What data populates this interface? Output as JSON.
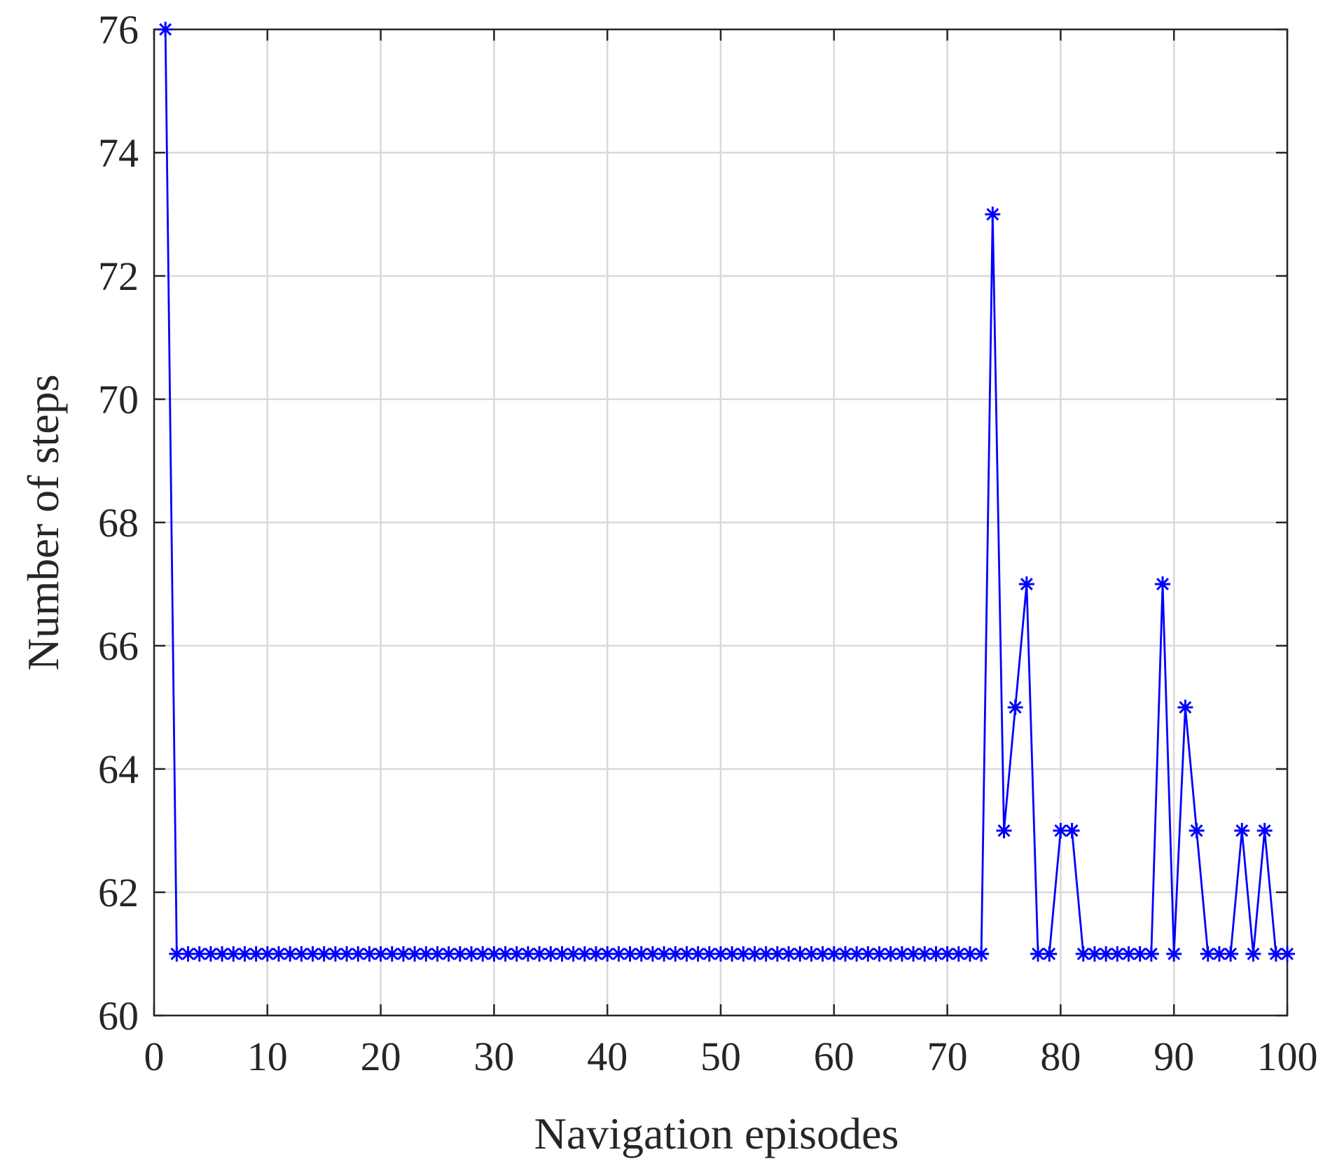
{
  "chart_data": {
    "type": "line",
    "title": "",
    "xlabel": "Navigation episodes",
    "ylabel": "Number of steps",
    "xlim": [
      0,
      100
    ],
    "ylim": [
      60,
      76
    ],
    "xticks": [
      "0",
      "10",
      "20",
      "30",
      "40",
      "50",
      "60",
      "70",
      "80",
      "90",
      "100"
    ],
    "yticks": [
      "60",
      "62",
      "64",
      "66",
      "68",
      "70",
      "72",
      "74",
      "76"
    ],
    "grid": true,
    "marker": "asterisk",
    "series": [
      {
        "color": "#0000ff",
        "x": [
          1,
          2,
          3,
          4,
          5,
          6,
          7,
          8,
          9,
          10,
          11,
          12,
          13,
          14,
          15,
          16,
          17,
          18,
          19,
          20,
          21,
          22,
          23,
          24,
          25,
          26,
          27,
          28,
          29,
          30,
          31,
          32,
          33,
          34,
          35,
          36,
          37,
          38,
          39,
          40,
          41,
          42,
          43,
          44,
          45,
          46,
          47,
          48,
          49,
          50,
          51,
          52,
          53,
          54,
          55,
          56,
          57,
          58,
          59,
          60,
          61,
          62,
          63,
          64,
          65,
          66,
          67,
          68,
          69,
          70,
          71,
          72,
          73,
          74,
          75,
          76,
          77,
          78,
          79,
          80,
          81,
          82,
          83,
          84,
          85,
          86,
          87,
          88,
          89,
          90,
          91,
          92,
          93,
          94,
          95,
          96,
          97,
          98,
          99,
          100
        ],
        "y": [
          76,
          61,
          61,
          61,
          61,
          61,
          61,
          61,
          61,
          61,
          61,
          61,
          61,
          61,
          61,
          61,
          61,
          61,
          61,
          61,
          61,
          61,
          61,
          61,
          61,
          61,
          61,
          61,
          61,
          61,
          61,
          61,
          61,
          61,
          61,
          61,
          61,
          61,
          61,
          61,
          61,
          61,
          61,
          61,
          61,
          61,
          61,
          61,
          61,
          61,
          61,
          61,
          61,
          61,
          61,
          61,
          61,
          61,
          61,
          61,
          61,
          61,
          61,
          61,
          61,
          61,
          61,
          61,
          61,
          61,
          61,
          61,
          61,
          73,
          63,
          65,
          67,
          61,
          61,
          63,
          63,
          61,
          61,
          61,
          61,
          61,
          61,
          61,
          67,
          61,
          65,
          63,
          61,
          61,
          61,
          63,
          61,
          63,
          61,
          61
        ]
      }
    ]
  }
}
